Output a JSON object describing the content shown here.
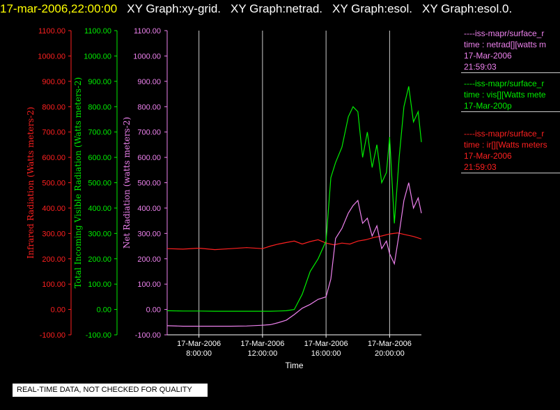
{
  "header": {
    "timestamp": "17-mar-2006,22:00:00",
    "titles": [
      "XY Graph:xy-grid.",
      "XY Graph:netrad.",
      "XY Graph:esol.",
      "XY Graph:esol.0."
    ]
  },
  "colors": {
    "ir": "#ff2020",
    "vis": "#00ee00",
    "net": "#ee82ee",
    "axis_text": "#ffffff",
    "grid": "#cccccc"
  },
  "legend": [
    {
      "lines": [
        "----iss-mapr/surface_r",
        "time : netrad[][watts m",
        "17-Mar-2006",
        "21:59:03"
      ],
      "color": "#ee82ee"
    },
    {
      "lines": [
        "----iss-mapr/surface_r",
        "time : vis[][Watts mete",
        "17-Mar-200p"
      ],
      "color": "#00ee00"
    },
    {
      "lines": [
        "----iss-mapr/surface_r",
        "time : ir[][Watts meters",
        "17-Mar-2006",
        "21:59:03"
      ],
      "color": "#ff2020"
    }
  ],
  "footer_note": "REAL-TIME DATA, NOT CHECKED FOR QUALITY",
  "chart_data": {
    "type": "line",
    "xlabel": "Time",
    "x_range_hours": [
      6,
      22
    ],
    "x_ticks": [
      {
        "hour": 8,
        "date": "17-Mar-2006",
        "time": "8:00:00"
      },
      {
        "hour": 12,
        "date": "17-Mar-2006",
        "time": "12:00:00"
      },
      {
        "hour": 16,
        "date": "17-Mar-2006",
        "time": "16:00:00"
      },
      {
        "hour": 20,
        "date": "17-Mar-2006",
        "time": "20:00:00"
      }
    ],
    "ylim": [
      -100,
      1100
    ],
    "y_ticks": [
      -100,
      0,
      100,
      200,
      300,
      400,
      500,
      600,
      700,
      800,
      900,
      1000,
      1100
    ],
    "y_axes": [
      {
        "label": "Infrared Radiation (Watts meters-2)",
        "color": "#ff2020"
      },
      {
        "label": "Total Incoming Visible Radiation (Watts meters-2)",
        "color": "#00ee00"
      },
      {
        "label": "Net Radiation (watts meters-2)",
        "color": "#ee82ee"
      }
    ],
    "grid": "vertical lines at x ticks",
    "series": [
      {
        "axis": 0,
        "color": "#ff2020",
        "x": [
          6.0,
          7.0,
          8.0,
          9.0,
          10.0,
          11.0,
          12.0,
          12.5,
          13.0,
          13.5,
          14.0,
          14.5,
          15.0,
          15.5,
          16.0,
          16.5,
          17.0,
          17.5,
          18.0,
          18.5,
          19.0,
          19.5,
          20.0,
          20.5,
          21.0,
          21.5,
          22.0
        ],
        "y": [
          240,
          238,
          242,
          236,
          240,
          244,
          240,
          250,
          258,
          264,
          270,
          258,
          268,
          275,
          262,
          255,
          262,
          258,
          270,
          275,
          284,
          290,
          298,
          302,
          295,
          288,
          278
        ]
      },
      {
        "axis": 1,
        "color": "#00ee00",
        "x": [
          6.0,
          7.0,
          8.0,
          9.0,
          10.0,
          11.0,
          12.0,
          12.5,
          13.0,
          13.5,
          14.0,
          14.5,
          15.0,
          15.5,
          16.0,
          16.3,
          16.6,
          17.0,
          17.4,
          17.7,
          18.0,
          18.3,
          18.6,
          18.9,
          19.2,
          19.5,
          19.8,
          20.0,
          20.3,
          20.6,
          20.9,
          21.2,
          21.5,
          21.8,
          22.0
        ],
        "y": [
          -5,
          -6,
          -6,
          -7,
          -7,
          -7,
          -7,
          -7,
          -6,
          -5,
          0,
          60,
          150,
          200,
          270,
          520,
          580,
          640,
          760,
          800,
          780,
          600,
          700,
          560,
          650,
          500,
          540,
          680,
          340,
          600,
          800,
          880,
          740,
          780,
          660
        ]
      },
      {
        "axis": 2,
        "color": "#ee82ee",
        "x": [
          6.0,
          7.0,
          8.0,
          9.0,
          10.0,
          11.0,
          12.0,
          12.5,
          13.0,
          13.5,
          14.0,
          14.5,
          15.0,
          15.5,
          16.0,
          16.3,
          16.6,
          17.0,
          17.4,
          17.7,
          18.0,
          18.3,
          18.6,
          18.9,
          19.2,
          19.5,
          19.8,
          20.0,
          20.3,
          20.6,
          20.9,
          21.2,
          21.5,
          21.8,
          22.0
        ],
        "y": [
          -64,
          -66,
          -66,
          -66,
          -66,
          -65,
          -62,
          -60,
          -52,
          -42,
          -20,
          5,
          20,
          40,
          50,
          120,
          280,
          320,
          380,
          410,
          430,
          340,
          360,
          290,
          330,
          240,
          270,
          220,
          180,
          300,
          430,
          500,
          400,
          440,
          380
        ]
      }
    ]
  }
}
